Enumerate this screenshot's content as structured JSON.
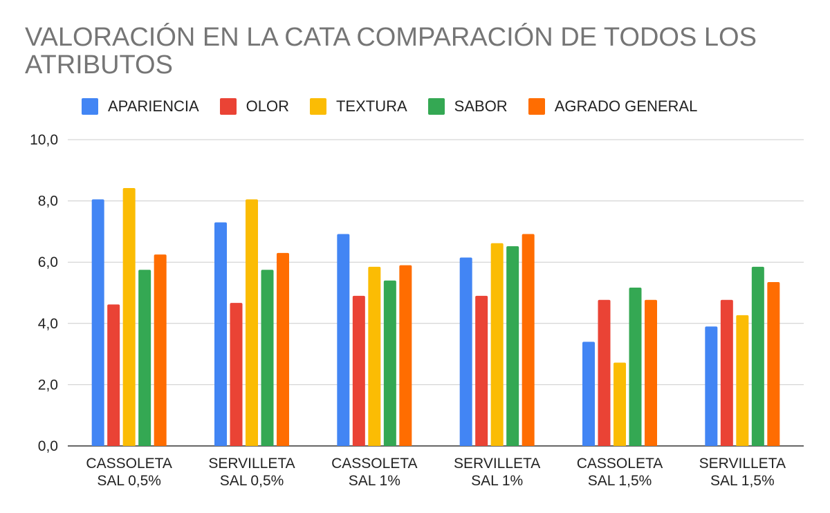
{
  "chart_data": {
    "type": "bar",
    "title": "VALORACIÓN EN LA CATA COMPARACIÓN DE TODOS LOS ATRIBUTOS",
    "xlabel": "",
    "ylabel": "",
    "ylim": [
      0,
      10
    ],
    "yticks": [
      "0,0",
      "2,0",
      "4,0",
      "6,0",
      "8,0",
      "10,0"
    ],
    "ytick_values": [
      0,
      2,
      4,
      6,
      8,
      10
    ],
    "grid": true,
    "legend_position": "top",
    "categories": [
      [
        "CASSOLETA",
        "SAL 0,5%"
      ],
      [
        "SERVILLETA",
        "SAL 0,5%"
      ],
      [
        "CASSOLETA",
        "SAL 1%"
      ],
      [
        "SERVILLETA",
        "SAL 1%"
      ],
      [
        "CASSOLETA",
        "SAL 1,5%"
      ],
      [
        "SERVILLETA",
        "SAL 1,5%"
      ]
    ],
    "series": [
      {
        "name": "APARIENCIA",
        "color": "#4285f4",
        "values": [
          8.05,
          7.3,
          6.92,
          6.15,
          3.4,
          3.9
        ]
      },
      {
        "name": "OLOR",
        "color": "#ea4335",
        "values": [
          4.62,
          4.67,
          4.9,
          4.9,
          4.77,
          4.77
        ]
      },
      {
        "name": "TEXTURA",
        "color": "#fbbc04",
        "values": [
          8.42,
          8.05,
          5.85,
          6.62,
          2.72,
          4.27
        ]
      },
      {
        "name": "SABOR",
        "color": "#34a853",
        "values": [
          5.75,
          5.75,
          5.4,
          6.52,
          5.17,
          5.85
        ]
      },
      {
        "name": "AGRADO GENERAL",
        "color": "#ff6d01",
        "values": [
          6.25,
          6.3,
          5.9,
          6.92,
          4.77,
          5.35
        ]
      }
    ]
  }
}
